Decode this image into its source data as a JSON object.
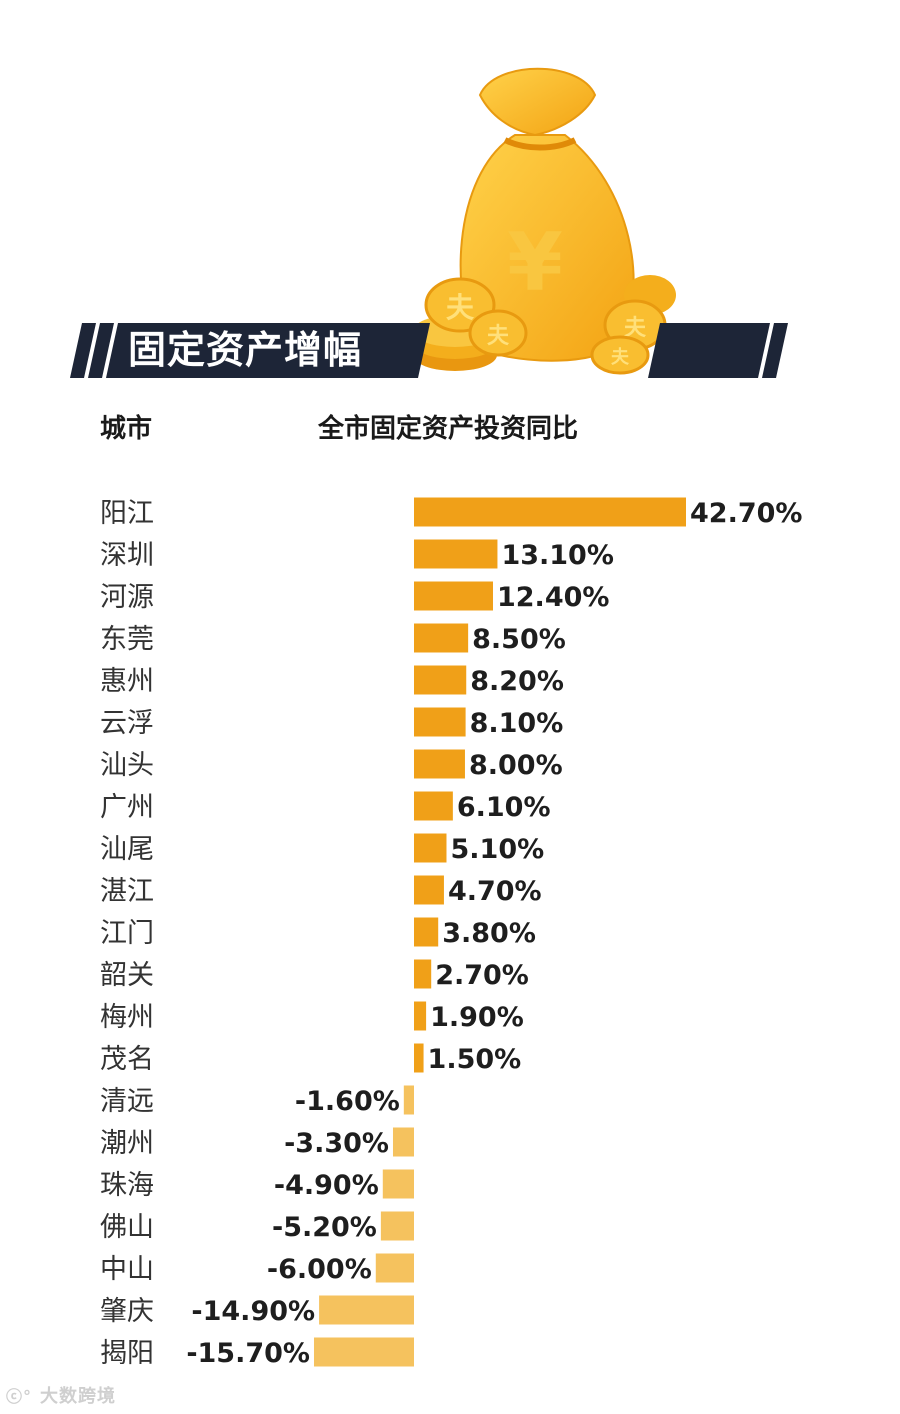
{
  "header": {
    "title": "固定资产增幅",
    "col_city": "城市",
    "col_metric": "全市固定资产投资同比"
  },
  "coin_symbol": "夫",
  "bag_symbol": "¥",
  "watermark": "大数跨境",
  "watermark_logo_text": "ⓒ°",
  "colors": {
    "positive": "#f0a018",
    "negative": "#f5c25e",
    "banner": "#1d2537",
    "gold": "#f7b82c"
  },
  "chart_data": {
    "type": "bar",
    "orientation": "horizontal",
    "title": "",
    "xlabel": "",
    "ylabel": "",
    "categories": [
      "阳江",
      "深圳",
      "河源",
      "东莞",
      "惠州",
      "云浮",
      "汕头",
      "广州",
      "汕尾",
      "湛江",
      "江门",
      "韶关",
      "梅州",
      "茂名",
      "清远",
      "潮州",
      "珠海",
      "佛山",
      "中山",
      "肇庆",
      "揭阳"
    ],
    "values": [
      42.7,
      13.1,
      12.4,
      8.5,
      8.2,
      8.1,
      8.0,
      6.1,
      5.1,
      4.7,
      3.8,
      2.7,
      1.9,
      1.5,
      -1.6,
      -3.3,
      -4.9,
      -5.2,
      -6.0,
      -14.9,
      -15.7
    ],
    "labels": [
      "42.70%",
      "13.10%",
      "12.40%",
      "8.50%",
      "8.20%",
      "8.10%",
      "8.00%",
      "6.10%",
      "5.10%",
      "4.70%",
      "3.80%",
      "2.70%",
      "1.90%",
      "1.50%",
      "-1.60%",
      "-3.30%",
      "-4.90%",
      "-5.20%",
      "-6.00%",
      "-14.90%",
      "-15.70%"
    ],
    "unit": "%"
  }
}
